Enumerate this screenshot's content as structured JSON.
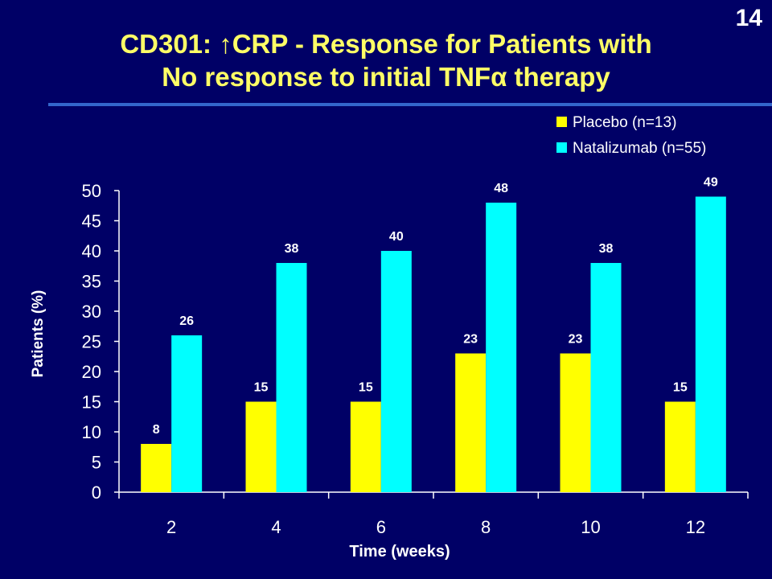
{
  "slide": {
    "number": "14",
    "title_line1": "CD301: ↑CRP - Response for Patients with",
    "title_line2": "No response to initial TNFα therapy"
  },
  "colors": {
    "background": "#000066",
    "title": "#ffff66",
    "rule": "#3366cc",
    "placebo": "#ffff00",
    "natalizumab": "#00ffff",
    "text": "#ffffff"
  },
  "chart_data": {
    "type": "bar",
    "categories": [
      "2",
      "4",
      "6",
      "8",
      "10",
      "12"
    ],
    "series": [
      {
        "name": "Placebo (n=13)",
        "values": [
          8,
          15,
          15,
          23,
          23,
          15
        ],
        "color": "#ffff00"
      },
      {
        "name": "Natalizumab (n=55)",
        "values": [
          26,
          38,
          40,
          48,
          38,
          49
        ],
        "color": "#00ffff"
      }
    ],
    "xlabel": "Time (weeks)",
    "ylabel": "Patients (%)",
    "ylim": [
      0,
      50
    ],
    "yticks": [
      0,
      5,
      10,
      15,
      20,
      25,
      30,
      35,
      40,
      45,
      50
    ],
    "grid": false,
    "legend": "top-right",
    "data_labels": true
  }
}
